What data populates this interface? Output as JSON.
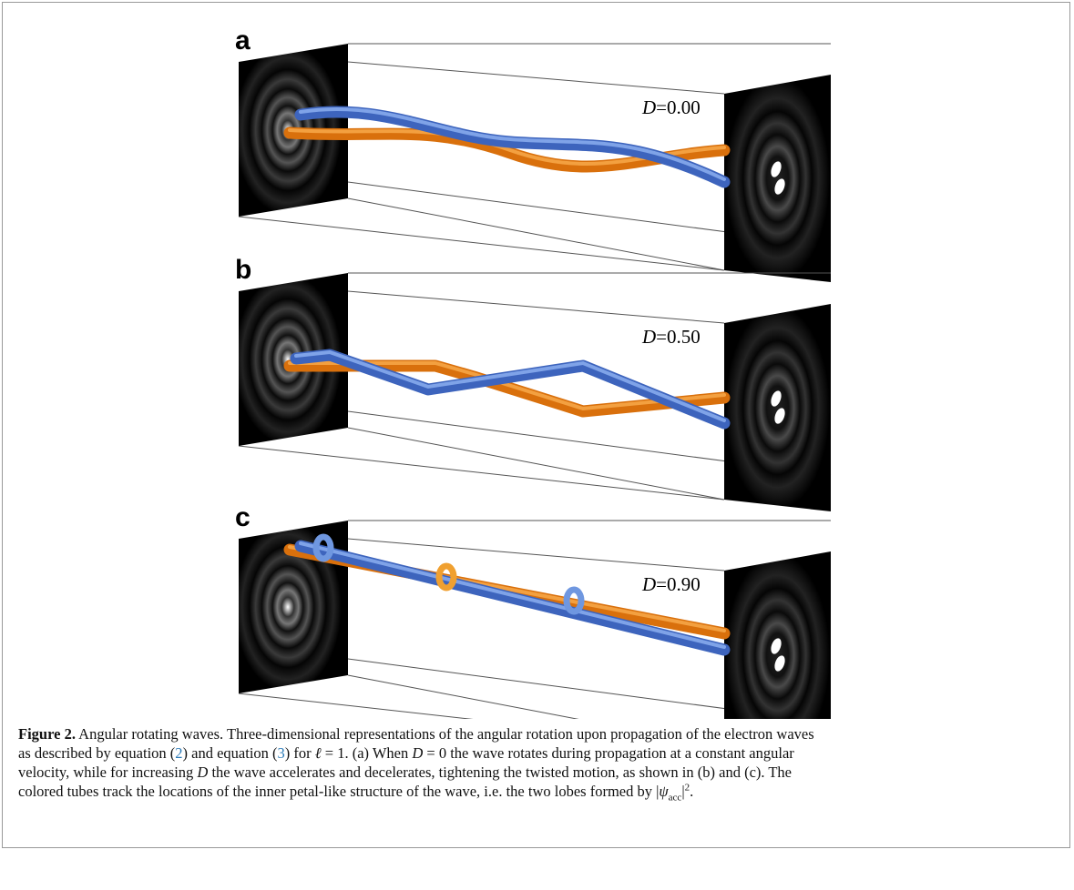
{
  "panels": [
    {
      "label": "a",
      "d_symbol": "D",
      "d_value": "=0.00"
    },
    {
      "label": "b",
      "d_symbol": "D",
      "d_value": "=0.50"
    },
    {
      "label": "c",
      "d_symbol": "D",
      "d_value": "=0.90"
    }
  ],
  "caption": {
    "label": "Figure 2.",
    "parts": [
      "Angular rotating waves. Three-dimensional representations of the angular rotation upon propagation of the electron waves",
      "as described by equation (",
      "2",
      ") and equation (",
      "3",
      ") for ",
      "ℓ",
      " = 1. (a) When ",
      "D",
      " = 0 the wave rotates during propagation at a constant angular",
      "velocity, while for increasing ",
      "D",
      " the wave accelerates and decelerates, tightening the twisted motion, as shown in (b) and (c). The",
      "colored tubes track the locations of the inner petal-like structure of the wave, i.e. the two lobes formed by |",
      "ψ",
      "acc",
      "|",
      "2",
      "."
    ]
  }
}
